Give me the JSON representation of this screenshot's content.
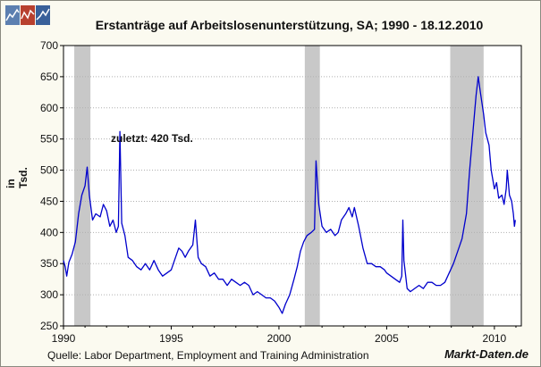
{
  "brand": {
    "logo_colors": [
      "#5c7fb0",
      "#b8402e",
      "#39609a"
    ],
    "site": "Markt-Daten.de"
  },
  "chart_data": {
    "type": "line",
    "title": "Erstanträge auf Arbeitslosenunterstützung, SA;  1990 - 18.12.2010",
    "ylabel": "in Tsd.",
    "xlabel": "",
    "annotation": "zuletzt: 420 Tsd.",
    "source": "Quelle: Labor Department, Employment and Training Administration",
    "xlim": [
      1990.0,
      2011.25
    ],
    "ylim": [
      250,
      700
    ],
    "x_ticks": [
      1990,
      1995,
      2000,
      2005,
      2010
    ],
    "y_ticks": [
      250,
      300,
      350,
      400,
      450,
      500,
      550,
      600,
      650,
      700
    ],
    "grid": "horizontal-dotted",
    "recessions": [
      [
        1990.5,
        1991.25
      ],
      [
        2001.2,
        2001.9
      ],
      [
        2007.95,
        2009.5
      ]
    ],
    "colors": {
      "series": "#0000cc",
      "recession": "#c8c8c8",
      "grid": "#b0b0b0",
      "plot_bg": "#ffffff"
    },
    "series": [
      {
        "values": [
          [
            1990.0,
            355
          ],
          [
            1990.08,
            345
          ],
          [
            1990.15,
            330
          ],
          [
            1990.25,
            352
          ],
          [
            1990.4,
            365
          ],
          [
            1990.55,
            385
          ],
          [
            1990.7,
            430
          ],
          [
            1990.85,
            460
          ],
          [
            1991.0,
            475
          ],
          [
            1991.1,
            505
          ],
          [
            1991.2,
            460
          ],
          [
            1991.35,
            420
          ],
          [
            1991.5,
            430
          ],
          [
            1991.7,
            425
          ],
          [
            1991.85,
            445
          ],
          [
            1992.0,
            435
          ],
          [
            1992.15,
            410
          ],
          [
            1992.3,
            420
          ],
          [
            1992.45,
            400
          ],
          [
            1992.55,
            410
          ],
          [
            1992.62,
            562
          ],
          [
            1992.7,
            415
          ],
          [
            1992.85,
            395
          ],
          [
            1993.0,
            360
          ],
          [
            1993.2,
            355
          ],
          [
            1993.4,
            345
          ],
          [
            1993.6,
            340
          ],
          [
            1993.8,
            350
          ],
          [
            1994.0,
            340
          ],
          [
            1994.2,
            355
          ],
          [
            1994.4,
            340
          ],
          [
            1994.6,
            330
          ],
          [
            1994.8,
            335
          ],
          [
            1995.0,
            340
          ],
          [
            1995.2,
            360
          ],
          [
            1995.35,
            375
          ],
          [
            1995.5,
            370
          ],
          [
            1995.65,
            360
          ],
          [
            1995.8,
            370
          ],
          [
            1996.0,
            380
          ],
          [
            1996.12,
            420
          ],
          [
            1996.25,
            360
          ],
          [
            1996.4,
            350
          ],
          [
            1996.6,
            345
          ],
          [
            1996.8,
            330
          ],
          [
            1997.0,
            335
          ],
          [
            1997.2,
            325
          ],
          [
            1997.4,
            325
          ],
          [
            1997.6,
            315
          ],
          [
            1997.8,
            325
          ],
          [
            1998.0,
            320
          ],
          [
            1998.2,
            315
          ],
          [
            1998.4,
            320
          ],
          [
            1998.6,
            315
          ],
          [
            1998.8,
            300
          ],
          [
            1999.0,
            305
          ],
          [
            1999.2,
            300
          ],
          [
            1999.4,
            295
          ],
          [
            1999.6,
            295
          ],
          [
            1999.8,
            290
          ],
          [
            2000.0,
            280
          ],
          [
            2000.15,
            270
          ],
          [
            2000.3,
            285
          ],
          [
            2000.5,
            300
          ],
          [
            2000.7,
            325
          ],
          [
            2000.85,
            345
          ],
          [
            2001.0,
            370
          ],
          [
            2001.15,
            385
          ],
          [
            2001.3,
            395
          ],
          [
            2001.5,
            400
          ],
          [
            2001.65,
            405
          ],
          [
            2001.72,
            515
          ],
          [
            2001.85,
            445
          ],
          [
            2002.0,
            410
          ],
          [
            2002.2,
            400
          ],
          [
            2002.4,
            405
          ],
          [
            2002.6,
            395
          ],
          [
            2002.75,
            400
          ],
          [
            2002.9,
            420
          ],
          [
            2003.1,
            430
          ],
          [
            2003.25,
            440
          ],
          [
            2003.4,
            425
          ],
          [
            2003.5,
            440
          ],
          [
            2003.7,
            410
          ],
          [
            2003.9,
            375
          ],
          [
            2004.1,
            350
          ],
          [
            2004.3,
            350
          ],
          [
            2004.5,
            345
          ],
          [
            2004.7,
            345
          ],
          [
            2004.9,
            340
          ],
          [
            2005.0,
            335
          ],
          [
            2005.2,
            330
          ],
          [
            2005.4,
            325
          ],
          [
            2005.6,
            320
          ],
          [
            2005.7,
            330
          ],
          [
            2005.75,
            420
          ],
          [
            2005.8,
            355
          ],
          [
            2005.95,
            310
          ],
          [
            2006.1,
            305
          ],
          [
            2006.3,
            310
          ],
          [
            2006.5,
            315
          ],
          [
            2006.7,
            310
          ],
          [
            2006.9,
            320
          ],
          [
            2007.1,
            320
          ],
          [
            2007.3,
            315
          ],
          [
            2007.5,
            315
          ],
          [
            2007.7,
            320
          ],
          [
            2007.9,
            335
          ],
          [
            2008.1,
            350
          ],
          [
            2008.3,
            370
          ],
          [
            2008.5,
            390
          ],
          [
            2008.7,
            430
          ],
          [
            2008.85,
            500
          ],
          [
            2009.0,
            560
          ],
          [
            2009.15,
            620
          ],
          [
            2009.25,
            650
          ],
          [
            2009.35,
            625
          ],
          [
            2009.5,
            590
          ],
          [
            2009.6,
            560
          ],
          [
            2009.75,
            540
          ],
          [
            2009.85,
            500
          ],
          [
            2010.0,
            470
          ],
          [
            2010.1,
            480
          ],
          [
            2010.2,
            455
          ],
          [
            2010.35,
            460
          ],
          [
            2010.45,
            445
          ],
          [
            2010.55,
            470
          ],
          [
            2010.6,
            500
          ],
          [
            2010.7,
            460
          ],
          [
            2010.8,
            450
          ],
          [
            2010.88,
            430
          ],
          [
            2010.93,
            410
          ],
          [
            2010.97,
            420
          ]
        ]
      }
    ]
  }
}
